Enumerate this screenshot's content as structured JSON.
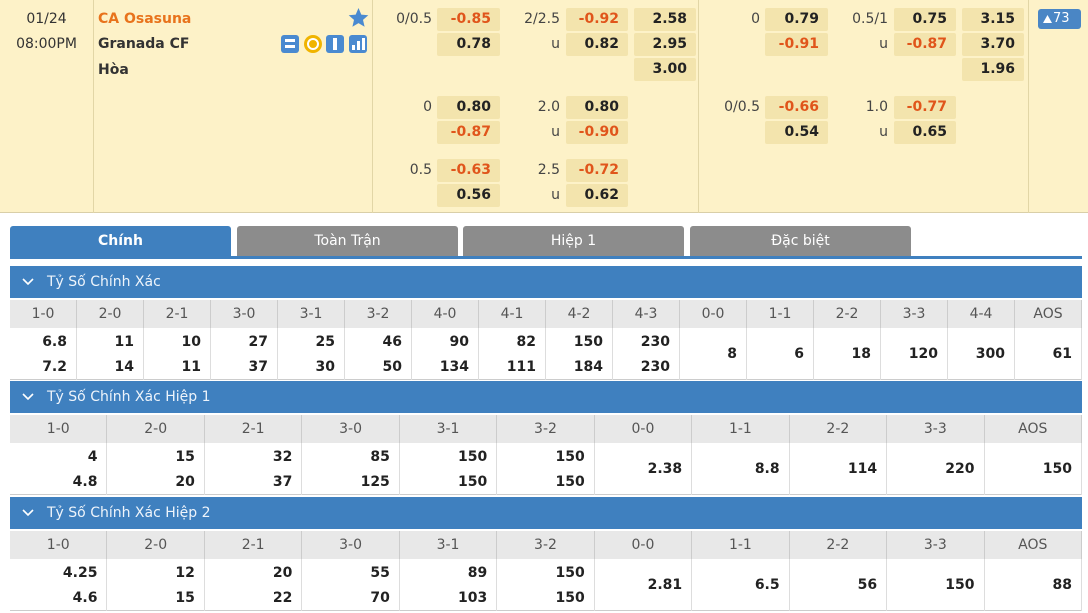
{
  "match": {
    "date": "01/24",
    "time": "08:00PM",
    "home": "CA Osasuna",
    "away": "Granada CF",
    "draw": "Hòa",
    "more": "73"
  },
  "odds": [
    {
      "left": [
        {
          "hcap": "0/0.5",
          "hcap_odds": "-0.85",
          "ou": "2/2.5",
          "ou_odds": "-0.92",
          "x12": "2.58"
        },
        {
          "hcap_odds": "0.78",
          "ou": "u",
          "ou_odds": "0.82",
          "x12": "2.95"
        },
        {
          "x12": "3.00"
        }
      ],
      "right": [
        {
          "hcap": "0",
          "hcap_odds": "0.79",
          "ou": "0.5/1",
          "ou_odds": "0.75",
          "x12": "3.15"
        },
        {
          "hcap_odds": "-0.91",
          "ou": "u",
          "ou_odds": "-0.87",
          "x12": "3.70"
        },
        {
          "x12": "1.96"
        }
      ]
    },
    {
      "left": [
        {
          "hcap": "0",
          "hcap_odds": "0.80",
          "ou": "2.0",
          "ou_odds": "0.80"
        },
        {
          "hcap_odds": "-0.87",
          "ou": "u",
          "ou_odds": "-0.90"
        }
      ],
      "right": [
        {
          "hcap": "0/0.5",
          "hcap_odds": "-0.66",
          "ou": "1.0",
          "ou_odds": "-0.77"
        },
        {
          "hcap_odds": "0.54",
          "ou": "u",
          "ou_odds": "0.65"
        }
      ]
    },
    {
      "left": [
        {
          "hcap": "0.5",
          "hcap_odds": "-0.63",
          "ou": "2.5",
          "ou_odds": "-0.72"
        },
        {
          "hcap_odds": "0.56",
          "ou": "u",
          "ou_odds": "0.62"
        }
      ]
    }
  ],
  "tabs": [
    "Chính",
    "Toàn Trận",
    "Hiệp 1",
    "Đặc biệt"
  ],
  "sections": [
    {
      "title": "Tỷ Số Chính Xác",
      "columns": [
        {
          "score": "1-0",
          "odds": [
            "6.8",
            "7.2"
          ]
        },
        {
          "score": "2-0",
          "odds": [
            "11",
            "14"
          ]
        },
        {
          "score": "2-1",
          "odds": [
            "10",
            "11"
          ]
        },
        {
          "score": "3-0",
          "odds": [
            "27",
            "37"
          ]
        },
        {
          "score": "3-1",
          "odds": [
            "25",
            "30"
          ]
        },
        {
          "score": "3-2",
          "odds": [
            "46",
            "50"
          ]
        },
        {
          "score": "4-0",
          "odds": [
            "90",
            "134"
          ]
        },
        {
          "score": "4-1",
          "odds": [
            "82",
            "111"
          ]
        },
        {
          "score": "4-2",
          "odds": [
            "150",
            "184"
          ]
        },
        {
          "score": "4-3",
          "odds": [
            "230",
            "230"
          ]
        },
        {
          "score": "0-0",
          "odds": [
            "8"
          ]
        },
        {
          "score": "1-1",
          "odds": [
            "6"
          ]
        },
        {
          "score": "2-2",
          "odds": [
            "18"
          ]
        },
        {
          "score": "3-3",
          "odds": [
            "120"
          ]
        },
        {
          "score": "4-4",
          "odds": [
            "300"
          ]
        },
        {
          "score": "AOS",
          "odds": [
            "61"
          ]
        }
      ]
    },
    {
      "title": "Tỷ Số Chính Xác Hiệp 1",
      "columns": [
        {
          "score": "1-0",
          "odds": [
            "4",
            "4.8"
          ]
        },
        {
          "score": "2-0",
          "odds": [
            "15",
            "20"
          ]
        },
        {
          "score": "2-1",
          "odds": [
            "32",
            "37"
          ]
        },
        {
          "score": "3-0",
          "odds": [
            "85",
            "125"
          ]
        },
        {
          "score": "3-1",
          "odds": [
            "150",
            "150"
          ]
        },
        {
          "score": "3-2",
          "odds": [
            "150",
            "150"
          ]
        },
        {
          "score": "0-0",
          "odds": [
            "2.38"
          ]
        },
        {
          "score": "1-1",
          "odds": [
            "8.8"
          ]
        },
        {
          "score": "2-2",
          "odds": [
            "114"
          ]
        },
        {
          "score": "3-3",
          "odds": [
            "220"
          ]
        },
        {
          "score": "AOS",
          "odds": [
            "150"
          ]
        }
      ]
    },
    {
      "title": "Tỷ Số Chính Xác Hiệp 2",
      "columns": [
        {
          "score": "1-0",
          "odds": [
            "4.25",
            "4.6"
          ]
        },
        {
          "score": "2-0",
          "odds": [
            "12",
            "15"
          ]
        },
        {
          "score": "2-1",
          "odds": [
            "20",
            "22"
          ]
        },
        {
          "score": "3-0",
          "odds": [
            "55",
            "70"
          ]
        },
        {
          "score": "3-1",
          "odds": [
            "89",
            "103"
          ]
        },
        {
          "score": "3-2",
          "odds": [
            "150",
            "150"
          ]
        },
        {
          "score": "0-0",
          "odds": [
            "2.81"
          ]
        },
        {
          "score": "1-1",
          "odds": [
            "6.5"
          ]
        },
        {
          "score": "2-2",
          "odds": [
            "56"
          ]
        },
        {
          "score": "3-3",
          "odds": [
            "150"
          ]
        },
        {
          "score": "AOS",
          "odds": [
            "88"
          ]
        }
      ]
    }
  ]
}
